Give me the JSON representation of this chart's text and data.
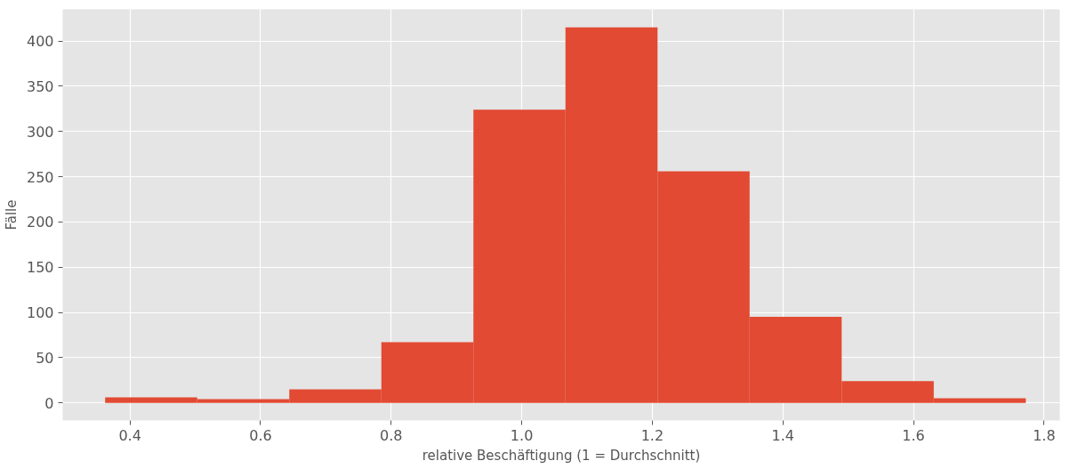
{
  "chart_data": {
    "type": "histogram",
    "xlabel": "relative Beschäftigung (1 = Durchschnitt)",
    "ylabel": "Fälle",
    "bins": [
      0.362,
      0.503,
      0.644,
      0.785,
      0.926,
      1.067,
      1.208,
      1.349,
      1.49,
      1.631,
      1.772
    ],
    "values": [
      6,
      4,
      15,
      67,
      324,
      415,
      256,
      95,
      24,
      5
    ],
    "color": "#e24a33",
    "xlim": [
      0.297,
      1.824
    ],
    "ylim": [
      -19.5,
      435
    ],
    "xticks": [
      {
        "value": 0.4,
        "label": "0.4"
      },
      {
        "value": 0.6,
        "label": "0.6"
      },
      {
        "value": 0.8,
        "label": "0.8"
      },
      {
        "value": 1.0,
        "label": "1.0"
      },
      {
        "value": 1.2,
        "label": "1.2"
      },
      {
        "value": 1.4,
        "label": "1.4"
      },
      {
        "value": 1.6,
        "label": "1.6"
      },
      {
        "value": 1.8,
        "label": "1.8"
      }
    ],
    "yticks": [
      0,
      50,
      100,
      150,
      200,
      250,
      300,
      350,
      400
    ],
    "grid": true
  }
}
